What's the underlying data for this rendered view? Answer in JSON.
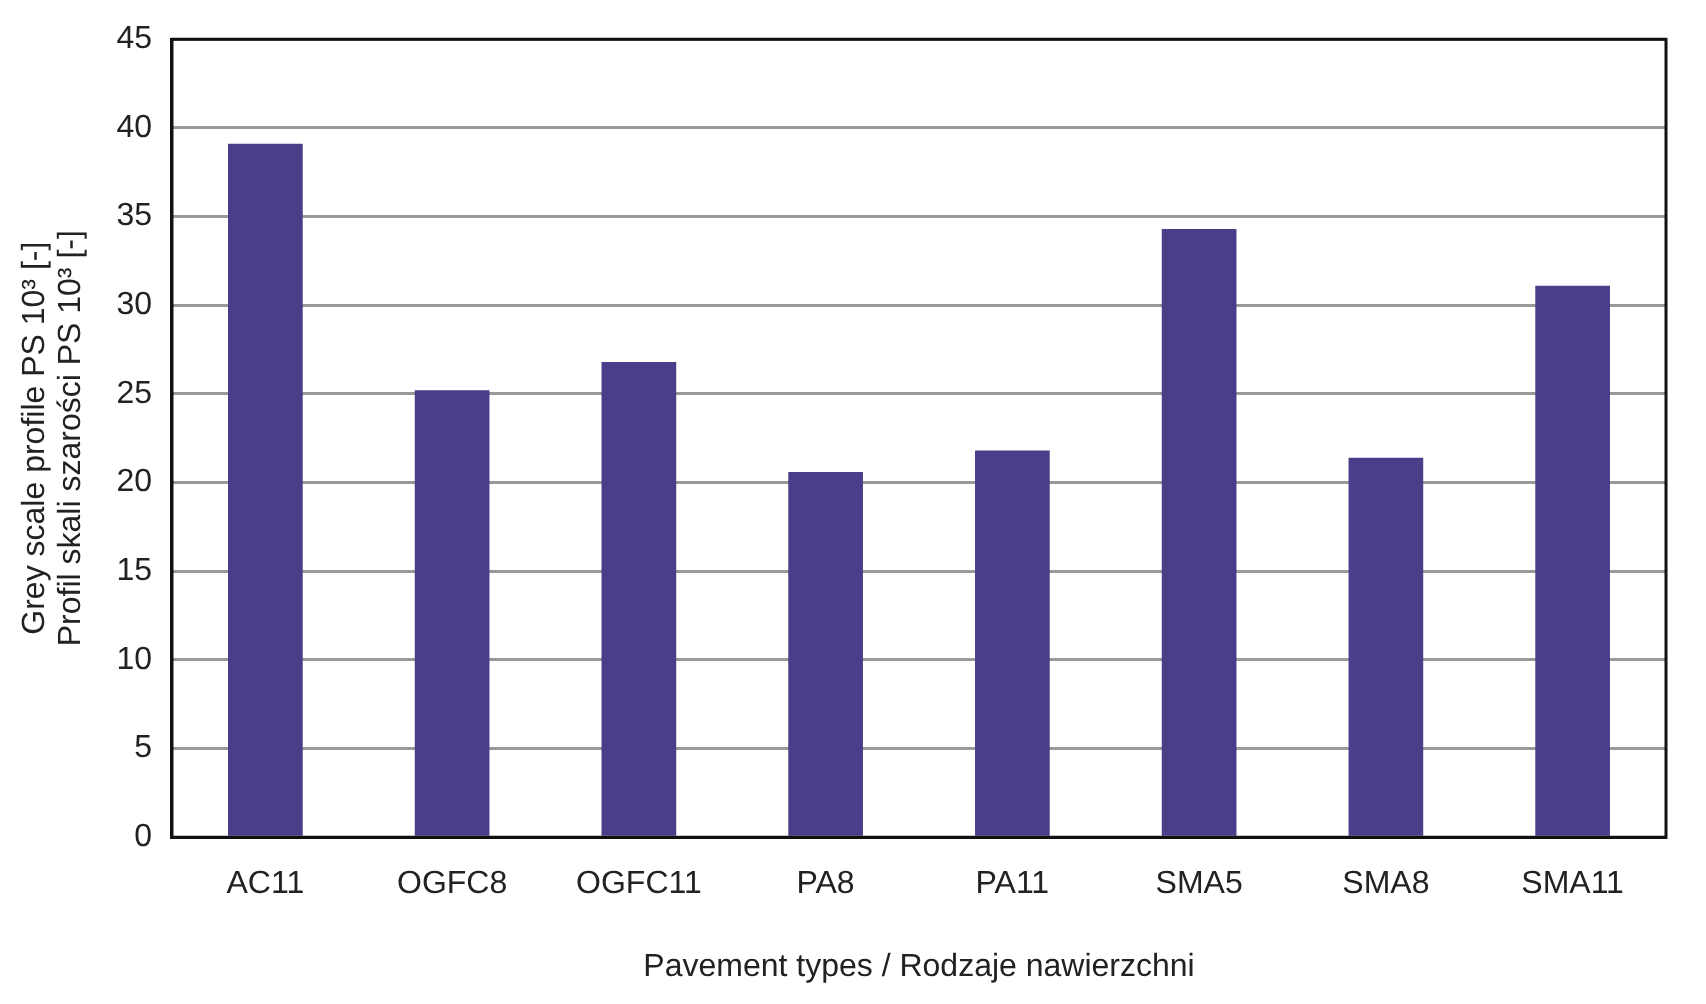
{
  "chart_data": {
    "type": "bar",
    "xlabel": "Pavement types / Rodzaje nawierzchni",
    "ylabel": "Grey scale profile PS 10³ [-]\nProfil skali szarości PS 10³ [-]",
    "categories": [
      "AC11",
      "OGFC8",
      "OGFC11",
      "PA8",
      "PA11",
      "SMA5",
      "SMA8",
      "SMA11"
    ],
    "values": [
      39.1,
      25.2,
      26.8,
      20.6,
      21.8,
      34.3,
      21.4,
      31.1
    ],
    "color": "#4a3d8a",
    "ylim": [
      0,
      45
    ],
    "yticks": [
      0,
      5,
      10,
      15,
      20,
      25,
      30,
      35,
      40,
      45
    ],
    "grid": "y"
  }
}
